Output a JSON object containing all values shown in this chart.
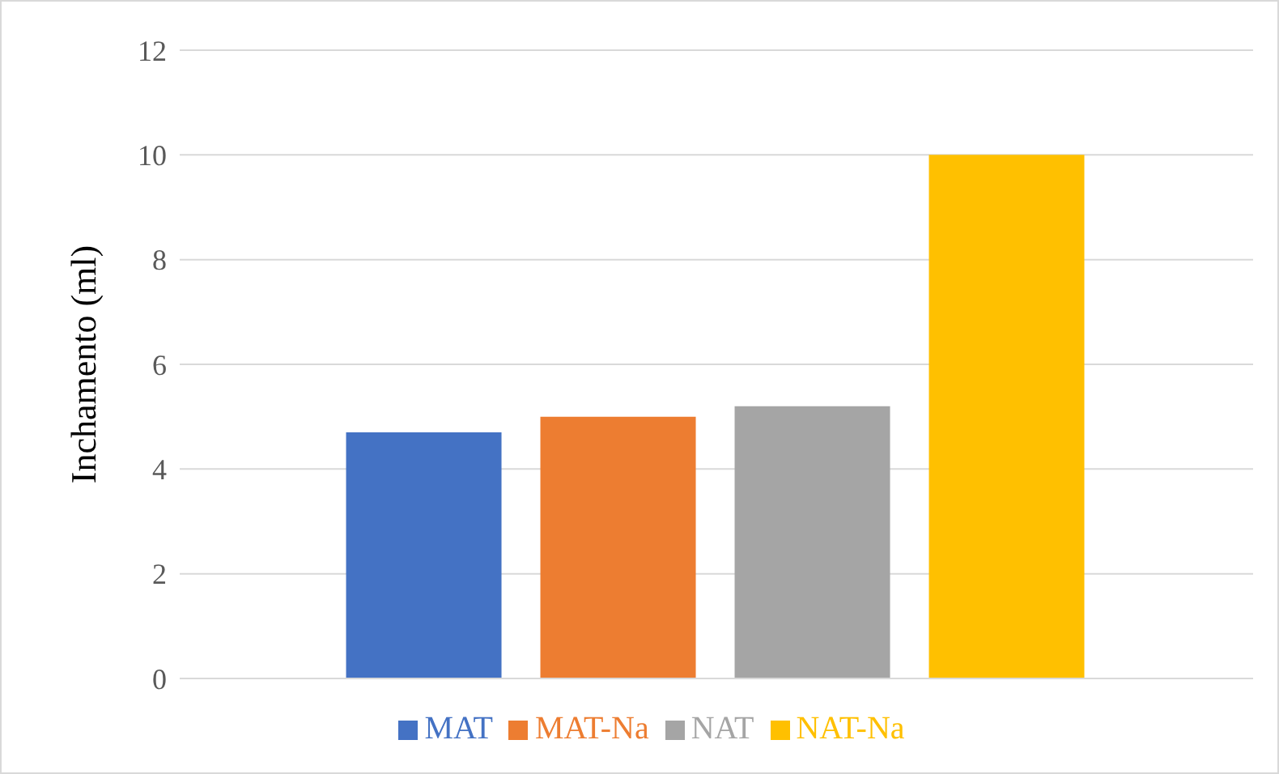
{
  "chart_data": {
    "type": "bar",
    "ylabel": "Inchamento (ml)",
    "categories": [
      null
    ],
    "series": [
      {
        "name": "MAT",
        "color": "#4472c4",
        "values": [
          4.7
        ]
      },
      {
        "name": "MAT-Na",
        "color": "#ed7d31",
        "values": [
          5.0
        ]
      },
      {
        "name": "NAT",
        "color": "#a5a5a5",
        "values": [
          5.2
        ]
      },
      {
        "name": "NAT-Na",
        "color": "#ffc000",
        "values": [
          10.0
        ]
      }
    ],
    "ylim": [
      0,
      12
    ],
    "yticks": [
      0,
      2,
      4,
      6,
      8,
      10,
      12
    ],
    "grid": "y",
    "legend": "bottom"
  }
}
